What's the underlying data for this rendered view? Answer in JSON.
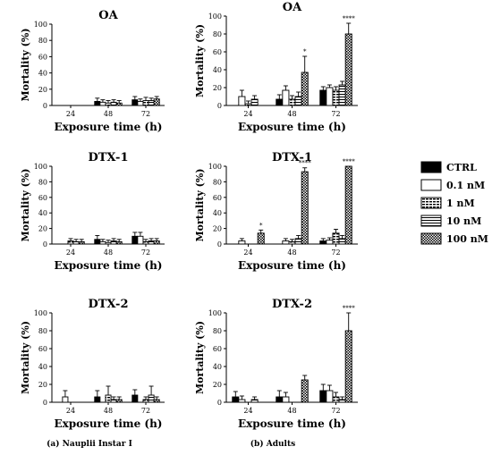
{
  "legend": [
    {
      "label": "CTRL",
      "pattern": "solid"
    },
    {
      "label": "0.1 nM",
      "pattern": "white"
    },
    {
      "label": "1 nM",
      "pattern": "dashes"
    },
    {
      "label": "10 nM",
      "pattern": "hlines"
    },
    {
      "label": "100 nM",
      "pattern": "checker"
    }
  ],
  "captions": {
    "a": "(a) Nauplii Instar I",
    "b": "(b) Adults"
  },
  "chart_data": [
    {
      "id": "a_oa",
      "type": "bar",
      "title": "OA",
      "xlabel": "Exposure time (h)",
      "ylabel": "Mortality (%)",
      "ylim": [
        0,
        100
      ],
      "yticks": [
        0,
        20,
        40,
        60,
        80,
        100
      ],
      "categories": [
        "24",
        "48",
        "72"
      ],
      "series": [
        {
          "name": "CTRL",
          "values": [
            0,
            5,
            7
          ],
          "errors": [
            0,
            4,
            4
          ],
          "sig": [
            "",
            "",
            ""
          ]
        },
        {
          "name": "0.1 nM",
          "values": [
            0,
            4,
            5
          ],
          "errors": [
            0,
            3,
            3
          ],
          "sig": [
            "",
            "",
            ""
          ]
        },
        {
          "name": "1 nM",
          "values": [
            0,
            3,
            6
          ],
          "errors": [
            0,
            3,
            4
          ],
          "sig": [
            "",
            "",
            ""
          ]
        },
        {
          "name": "10 nM",
          "values": [
            0,
            4,
            6
          ],
          "errors": [
            0,
            3,
            3
          ],
          "sig": [
            "",
            "",
            ""
          ]
        },
        {
          "name": "100 nM",
          "values": [
            0,
            3,
            8
          ],
          "errors": [
            0,
            3,
            3
          ],
          "sig": [
            "",
            "",
            ""
          ]
        }
      ]
    },
    {
      "id": "b_oa",
      "type": "bar",
      "title": "OA",
      "xlabel": "Exposure time (h)",
      "ylabel": "Mortality (%)",
      "ylim": [
        0,
        100
      ],
      "yticks": [
        0,
        20,
        40,
        60,
        80,
        100
      ],
      "categories": [
        "24",
        "48",
        "72"
      ],
      "series": [
        {
          "name": "CTRL",
          "values": [
            0,
            7,
            17
          ],
          "errors": [
            0,
            5,
            4
          ],
          "sig": [
            "",
            "",
            ""
          ]
        },
        {
          "name": "0.1 nM",
          "values": [
            10,
            17,
            20
          ],
          "errors": [
            7,
            5,
            3
          ],
          "sig": [
            "",
            "",
            ""
          ]
        },
        {
          "name": "1 nM",
          "values": [
            2,
            7,
            17
          ],
          "errors": [
            3,
            4,
            4
          ],
          "sig": [
            "",
            "",
            ""
          ]
        },
        {
          "name": "10 nM",
          "values": [
            7,
            10,
            23
          ],
          "errors": [
            4,
            5,
            4
          ],
          "sig": [
            "",
            "",
            ""
          ]
        },
        {
          "name": "100 nM",
          "values": [
            0,
            37,
            80
          ],
          "errors": [
            0,
            18,
            12
          ],
          "sig": [
            "",
            "*",
            "****"
          ]
        }
      ]
    },
    {
      "id": "a_dtx1",
      "type": "bar",
      "title": "DTX-1",
      "xlabel": "Exposure time (h)",
      "ylabel": "Mortality (%)",
      "ylim": [
        0,
        100
      ],
      "yticks": [
        0,
        20,
        40,
        60,
        80,
        100
      ],
      "categories": [
        "24",
        "48",
        "72"
      ],
      "series": [
        {
          "name": "CTRL",
          "values": [
            0,
            6,
            10
          ],
          "errors": [
            0,
            5,
            5
          ],
          "sig": [
            "",
            "",
            ""
          ]
        },
        {
          "name": "0.1 nM",
          "values": [
            0,
            3,
            10
          ],
          "errors": [
            0,
            3,
            5
          ],
          "sig": [
            "",
            "",
            ""
          ]
        },
        {
          "name": "1 nM",
          "values": [
            4,
            2,
            3
          ],
          "errors": [
            3,
            3,
            3
          ],
          "sig": [
            "",
            "",
            ""
          ]
        },
        {
          "name": "10 nM",
          "values": [
            3,
            4,
            4
          ],
          "errors": [
            3,
            3,
            3
          ],
          "sig": [
            "",
            "",
            ""
          ]
        },
        {
          "name": "100 nM",
          "values": [
            3,
            3,
            4
          ],
          "errors": [
            3,
            3,
            3
          ],
          "sig": [
            "",
            "",
            ""
          ]
        }
      ]
    },
    {
      "id": "b_dtx1",
      "type": "bar",
      "title": "DTX-1",
      "xlabel": "Exposure time (h)",
      "ylabel": "Mortality (%)",
      "ylim": [
        0,
        100
      ],
      "yticks": [
        0,
        20,
        40,
        60,
        80,
        100
      ],
      "categories": [
        "24",
        "48",
        "72"
      ],
      "series": [
        {
          "name": "CTRL",
          "values": [
            0,
            0,
            4
          ],
          "errors": [
            0,
            0,
            3
          ],
          "sig": [
            "",
            "",
            ""
          ]
        },
        {
          "name": "0.1 nM",
          "values": [
            4,
            4,
            5
          ],
          "errors": [
            3,
            3,
            3
          ],
          "sig": [
            "",
            "",
            ""
          ]
        },
        {
          "name": "1 nM",
          "values": [
            0,
            3,
            14
          ],
          "errors": [
            0,
            3,
            5
          ],
          "sig": [
            "",
            "",
            ""
          ]
        },
        {
          "name": "10 nM",
          "values": [
            0,
            7,
            7
          ],
          "errors": [
            0,
            4,
            4
          ],
          "sig": [
            "",
            "",
            ""
          ]
        },
        {
          "name": "100 nM",
          "values": [
            14,
            93,
            100
          ],
          "errors": [
            4,
            5,
            0
          ],
          "sig": [
            "*",
            "****",
            "****"
          ]
        }
      ]
    },
    {
      "id": "a_dtx2",
      "type": "bar",
      "title": "DTX-2",
      "xlabel": "Exposure time (h)",
      "ylabel": "Mortality (%)",
      "ylim": [
        0,
        100
      ],
      "yticks": [
        0,
        20,
        40,
        60,
        80,
        100
      ],
      "categories": [
        "24",
        "48",
        "72"
      ],
      "series": [
        {
          "name": "CTRL",
          "values": [
            0,
            6,
            8
          ],
          "errors": [
            0,
            7,
            6
          ],
          "sig": [
            "",
            "",
            ""
          ]
        },
        {
          "name": "0.1 nM",
          "values": [
            6,
            0,
            0
          ],
          "errors": [
            7,
            0,
            0
          ],
          "sig": [
            "",
            "",
            ""
          ]
        },
        {
          "name": "1 nM",
          "values": [
            0,
            8,
            3
          ],
          "errors": [
            0,
            10,
            3
          ],
          "sig": [
            "",
            "",
            ""
          ]
        },
        {
          "name": "10 nM",
          "values": [
            0,
            3,
            8
          ],
          "errors": [
            0,
            3,
            10
          ],
          "sig": [
            "",
            "",
            ""
          ]
        },
        {
          "name": "100 nM",
          "values": [
            0,
            3,
            3
          ],
          "errors": [
            0,
            3,
            3
          ],
          "sig": [
            "",
            "",
            ""
          ]
        }
      ]
    },
    {
      "id": "b_dtx2",
      "type": "bar",
      "title": "DTX-2",
      "xlabel": "Exposure time (h)",
      "ylabel": "Mortality (%)",
      "ylim": [
        0,
        100
      ],
      "yticks": [
        0,
        20,
        40,
        60,
        80,
        100
      ],
      "categories": [
        "24",
        "48",
        "72"
      ],
      "series": [
        {
          "name": "CTRL",
          "values": [
            6,
            6,
            13
          ],
          "errors": [
            6,
            7,
            7
          ],
          "sig": [
            "",
            "",
            ""
          ]
        },
        {
          "name": "0.1 nM",
          "values": [
            3,
            6,
            13
          ],
          "errors": [
            4,
            5,
            6
          ],
          "sig": [
            "",
            "",
            ""
          ]
        },
        {
          "name": "1 nM",
          "values": [
            0,
            0,
            6
          ],
          "errors": [
            0,
            0,
            5
          ],
          "sig": [
            "",
            "",
            ""
          ]
        },
        {
          "name": "10 nM",
          "values": [
            3,
            0,
            3
          ],
          "errors": [
            3,
            0,
            3
          ],
          "sig": [
            "",
            "",
            ""
          ]
        },
        {
          "name": "100 nM",
          "values": [
            0,
            25,
            80
          ],
          "errors": [
            0,
            5,
            20
          ],
          "sig": [
            "",
            "",
            "****"
          ]
        }
      ]
    }
  ]
}
